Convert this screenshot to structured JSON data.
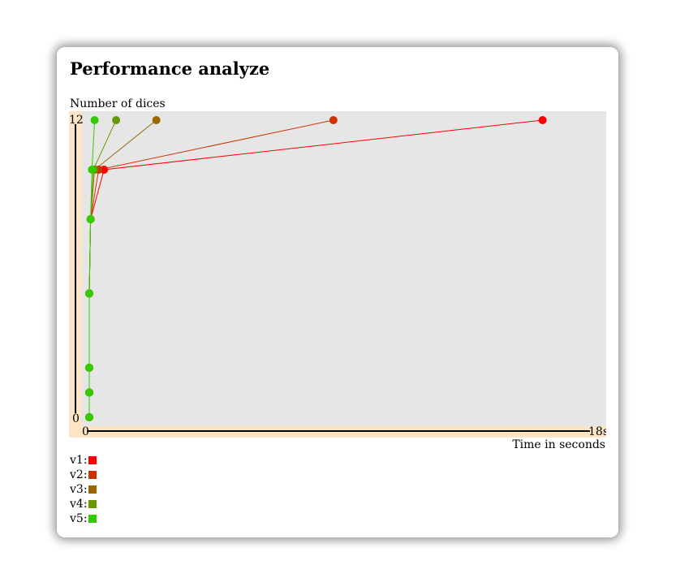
{
  "page": {
    "title": "Performance analyze"
  },
  "colors": {
    "plot_bg": "#e6e6e6",
    "axis_band": "#fde4c5",
    "axis": "#000000"
  },
  "chart_data": {
    "type": "line",
    "title": "Performance analyze",
    "ylabel": "Number of dices",
    "xlabel": "Time in seconds",
    "xlim": [
      0,
      18
    ],
    "ylim": [
      0,
      12
    ],
    "x_tick_labels": [
      "0",
      "18s"
    ],
    "y_tick_labels": [
      "0",
      "12"
    ],
    "series": [
      {
        "name": "v1",
        "color": "#ff0000",
        "points": [
          [
            0.0,
            0
          ],
          [
            0.0,
            1
          ],
          [
            0.0,
            2
          ],
          [
            0.0,
            5
          ],
          [
            0.05,
            8
          ],
          [
            0.55,
            10
          ],
          [
            16.9,
            12
          ]
        ]
      },
      {
        "name": "v2",
        "color": "#cc3300",
        "points": [
          [
            0.0,
            0
          ],
          [
            0.0,
            1
          ],
          [
            0.0,
            2
          ],
          [
            0.0,
            5
          ],
          [
            0.05,
            8
          ],
          [
            0.35,
            10
          ],
          [
            9.1,
            12
          ]
        ]
      },
      {
        "name": "v3",
        "color": "#996600",
        "points": [
          [
            0.0,
            0
          ],
          [
            0.0,
            1
          ],
          [
            0.0,
            2
          ],
          [
            0.0,
            5
          ],
          [
            0.05,
            8
          ],
          [
            0.2,
            10
          ],
          [
            2.5,
            12
          ]
        ]
      },
      {
        "name": "v4",
        "color": "#669900",
        "points": [
          [
            0.0,
            0
          ],
          [
            0.0,
            1
          ],
          [
            0.0,
            2
          ],
          [
            0.0,
            5
          ],
          [
            0.05,
            8
          ],
          [
            0.15,
            10
          ],
          [
            1.0,
            12
          ]
        ]
      },
      {
        "name": "v5",
        "color": "#33cc00",
        "points": [
          [
            0.0,
            0
          ],
          [
            0.0,
            1
          ],
          [
            0.0,
            2
          ],
          [
            0.0,
            5
          ],
          [
            0.05,
            8
          ],
          [
            0.1,
            10
          ],
          [
            0.2,
            12
          ]
        ]
      }
    ]
  },
  "legend": [
    {
      "label": "v1:",
      "color": "#ff0000"
    },
    {
      "label": "v2:",
      "color": "#cc3300"
    },
    {
      "label": "v3:",
      "color": "#996600"
    },
    {
      "label": "v4:",
      "color": "#669900"
    },
    {
      "label": "v5:",
      "color": "#33cc00"
    }
  ]
}
